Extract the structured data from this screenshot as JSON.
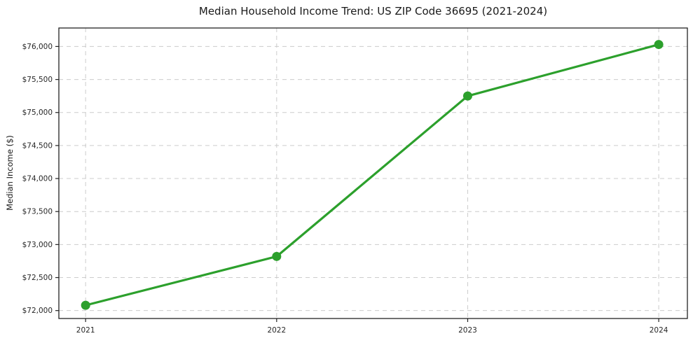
{
  "chart_data": {
    "type": "line",
    "title": "Median Household Income Trend: US ZIP Code 36695 (2021-2024)",
    "xlabel": "",
    "ylabel": "Median Income ($)",
    "categories": [
      2021,
      2022,
      2023,
      2024
    ],
    "series": [
      {
        "name": "Median Household Income",
        "values": [
          72080,
          72820,
          75250,
          76030
        ]
      }
    ],
    "xticks": {
      "values": [
        2021,
        2022,
        2023,
        2024
      ],
      "labels": [
        "2021",
        "2022",
        "2023",
        "2024"
      ]
    },
    "yticks": {
      "values": [
        72000,
        72500,
        73000,
        73500,
        74000,
        74500,
        75000,
        75500,
        76000
      ],
      "labels": [
        "$72,000",
        "$72,500",
        "$73,000",
        "$73,500",
        "$74,000",
        "$74,500",
        "$75,000",
        "$75,500",
        "$76,000"
      ]
    },
    "xlim": [
      2020.86,
      2024.15
    ],
    "ylim": [
      71880,
      76280
    ],
    "style": {
      "line_color": "#2ca02c",
      "marker_color": "#2ca02c",
      "marker_shape": "circle",
      "grid": "dashed",
      "grid_color": "#cccccc",
      "axis_color": "#222222",
      "background_color": "#ffffff",
      "legend": "none"
    }
  }
}
